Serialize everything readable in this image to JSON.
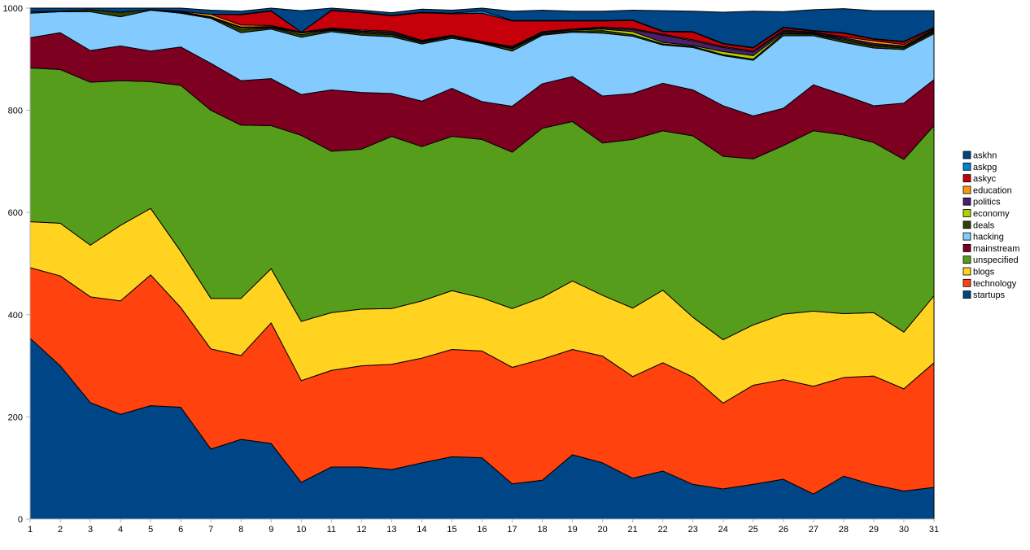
{
  "chart_data": {
    "type": "area",
    "stacked": true,
    "title": "",
    "xlabel": "",
    "ylabel": "",
    "x": [
      1,
      2,
      3,
      4,
      5,
      6,
      7,
      8,
      9,
      10,
      11,
      12,
      13,
      14,
      15,
      16,
      17,
      18,
      19,
      20,
      21,
      22,
      23,
      24,
      25,
      26,
      27,
      28,
      29,
      30,
      31
    ],
    "ylim": [
      0,
      1000
    ],
    "yticks": [
      0,
      200,
      400,
      600,
      800,
      1000
    ],
    "grid": false,
    "legend_position": "right",
    "series": [
      {
        "name": "startups",
        "color": "#004586",
        "values": [
          354,
          300,
          228,
          205,
          222,
          219,
          137,
          156,
          148,
          72,
          102,
          102,
          97,
          110,
          122,
          120,
          69,
          76,
          126,
          110,
          80,
          94,
          68,
          59,
          68,
          78,
          49,
          84,
          67,
          55,
          62
        ]
      },
      {
        "name": "technology",
        "color": "#ff420e",
        "values": [
          138,
          176,
          207,
          222,
          256,
          195,
          196,
          164,
          236,
          199,
          189,
          198,
          206,
          205,
          210,
          209,
          228,
          237,
          206,
          209,
          199,
          212,
          210,
          168,
          194,
          195,
          211,
          193,
          213,
          200,
          244
        ]
      },
      {
        "name": "blogs",
        "color": "#ffd320",
        "values": [
          90,
          103,
          101,
          148,
          130,
          110,
          99,
          112,
          106,
          116,
          113,
          111,
          109,
          112,
          115,
          104,
          115,
          121,
          134,
          119,
          134,
          142,
          117,
          124,
          118,
          128,
          147,
          125,
          124,
          111,
          131
        ]
      },
      {
        "name": "unspecified",
        "color": "#579d1c",
        "values": [
          301,
          301,
          319,
          283,
          248,
          325,
          368,
          339,
          280,
          364,
          316,
          313,
          337,
          302,
          302,
          310,
          306,
          331,
          312,
          298,
          330,
          312,
          355,
          359,
          325,
          330,
          353,
          350,
          333,
          338,
          333
        ]
      },
      {
        "name": "mainstream",
        "color": "#7e0021",
        "values": [
          59,
          72,
          62,
          68,
          60,
          75,
          92,
          87,
          92,
          80,
          120,
          111,
          84,
          89,
          94,
          74,
          90,
          87,
          88,
          92,
          90,
          93,
          90,
          99,
          84,
          73,
          90,
          78,
          72,
          110,
          90
        ]
      },
      {
        "name": "hacking",
        "color": "#83caff",
        "values": [
          48,
          41,
          76,
          57,
          80,
          66,
          88,
          94,
          97,
          112,
          114,
          112,
          111,
          112,
          98,
          114,
          108,
          95,
          87,
          123,
          112,
          75,
          83,
          98,
          109,
          142,
          96,
          103,
          113,
          105,
          90
        ]
      },
      {
        "name": "deals",
        "color": "#314004",
        "values": [
          3,
          1,
          4,
          9,
          1,
          2,
          2,
          6,
          3,
          5,
          3,
          4,
          4,
          3,
          3,
          1,
          5,
          2,
          2,
          5,
          3,
          2,
          2,
          2,
          2,
          4,
          3,
          4,
          4,
          3,
          3
        ]
      },
      {
        "name": "economy",
        "color": "#aecf00",
        "values": [
          0,
          0,
          0,
          0,
          0,
          1,
          1,
          3,
          1,
          3,
          1,
          2,
          2,
          1,
          1,
          1,
          1,
          2,
          2,
          3,
          6,
          3,
          2,
          6,
          7,
          2,
          1,
          2,
          2,
          2,
          2
        ]
      },
      {
        "name": "politics",
        "color": "#4b1f6f",
        "values": [
          0,
          0,
          0,
          0,
          0,
          0,
          0,
          2,
          1,
          1,
          2,
          2,
          3,
          2,
          1,
          1,
          2,
          2,
          1,
          2,
          4,
          14,
          9,
          8,
          7,
          3,
          2,
          3,
          3,
          2,
          2
        ]
      },
      {
        "name": "education",
        "color": "#ff950e",
        "values": [
          0,
          0,
          0,
          0,
          0,
          1,
          5,
          4,
          2,
          1,
          1,
          2,
          2,
          1,
          1,
          1,
          1,
          1,
          1,
          2,
          2,
          2,
          2,
          2,
          2,
          2,
          1,
          2,
          5,
          3,
          2
        ]
      },
      {
        "name": "askyc",
        "color": "#c5000b",
        "values": [
          0,
          0,
          0,
          0,
          0,
          0,
          0,
          20,
          28,
          0,
          34,
          34,
          30,
          54,
          42,
          55,
          50,
          21,
          16,
          12,
          16,
          5,
          15,
          5,
          6,
          4,
          2,
          7,
          3,
          5,
          2
        ]
      },
      {
        "name": "askpg",
        "color": "#0084d1",
        "values": [
          0,
          0,
          0,
          0,
          0,
          0,
          0,
          1,
          1,
          0,
          1,
          1,
          1,
          1,
          1,
          5,
          1,
          1,
          1,
          1,
          1,
          1,
          1,
          1,
          1,
          2,
          1,
          1,
          1,
          1,
          1
        ]
      },
      {
        "name": "askhn",
        "color": "#004586",
        "values": [
          7,
          7,
          3,
          8,
          3,
          6,
          8,
          6,
          8,
          42,
          4,
          4,
          5,
          6,
          6,
          6,
          18,
          20,
          18,
          18,
          19,
          40,
          40,
          61,
          71,
          30,
          41,
          47,
          55,
          60,
          33
        ]
      }
    ]
  }
}
